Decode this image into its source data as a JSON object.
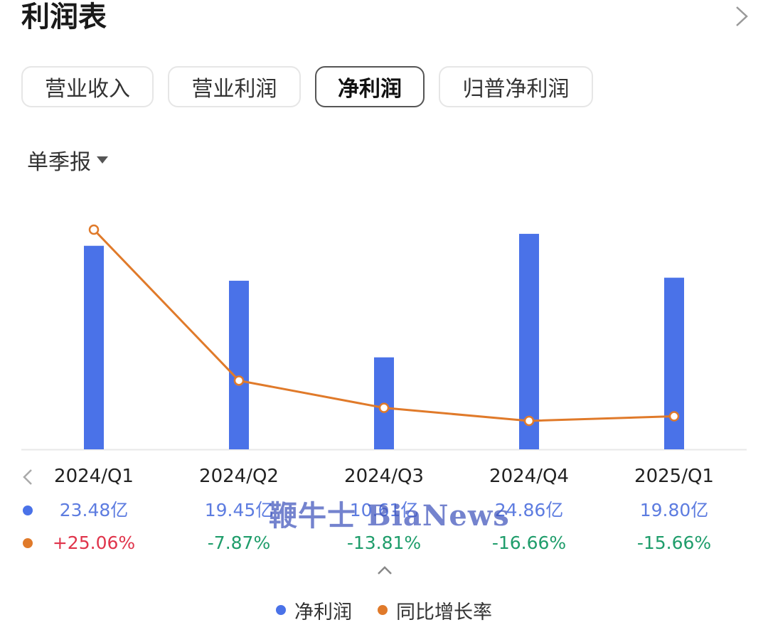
{
  "header": {
    "title": "利润表"
  },
  "tabs": [
    {
      "label": "营业收入",
      "active": false
    },
    {
      "label": "营业利润",
      "active": false
    },
    {
      "label": "净利润",
      "active": true
    },
    {
      "label": "归普净利润",
      "active": false
    }
  ],
  "period_selector": {
    "label": "单季报"
  },
  "colors": {
    "bar": "#4a72e8",
    "line": "#e07a2a",
    "positive": "#e0344b",
    "negative": "#1f9d6b",
    "value_text": "#5d7ce0"
  },
  "chart_data": {
    "type": "bar",
    "categories": [
      "2024/Q1",
      "2024/Q2",
      "2024/Q3",
      "2024/Q4",
      "2025/Q1"
    ],
    "series": [
      {
        "name": "净利润",
        "type": "bar",
        "unit": "亿",
        "values": [
          23.48,
          19.45,
          10.61,
          24.86,
          19.8
        ],
        "labels": [
          "23.48亿",
          "19.45亿",
          "10.61亿",
          "24.86亿",
          "19.80亿"
        ]
      },
      {
        "name": "同比增长率",
        "type": "line",
        "unit": "%",
        "values": [
          25.06,
          -7.87,
          -13.81,
          -16.66,
          -15.66
        ],
        "labels": [
          "+25.06%",
          "-7.87%",
          "-13.81%",
          "-16.66%",
          "-15.66%"
        ]
      }
    ],
    "legend": {
      "position": "bottom"
    },
    "grid": false
  },
  "watermark": {
    "text": "鞭牛士 BiaNews"
  },
  "icons": {
    "more": "chevron-right-icon",
    "prev": "chevron-left-icon",
    "collapse": "chevron-up-icon",
    "dropdown": "caret-down-icon"
  }
}
